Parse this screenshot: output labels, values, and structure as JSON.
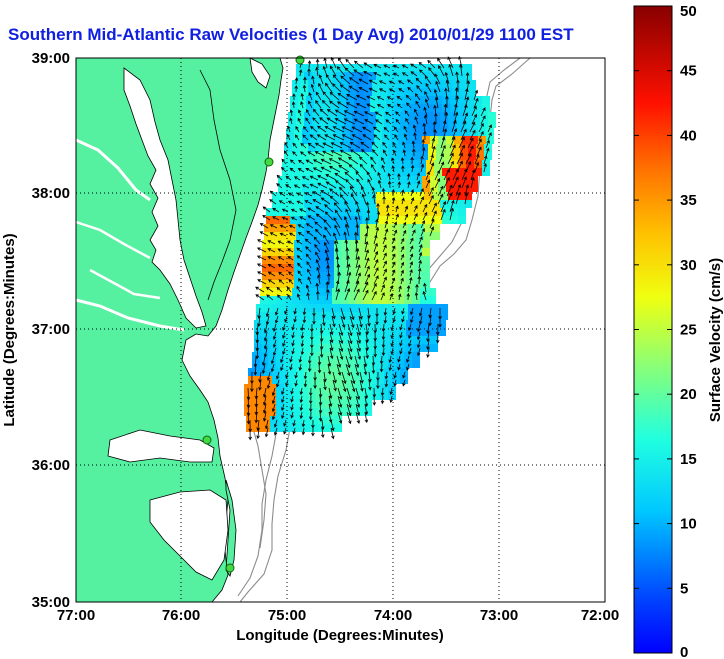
{
  "title": "Southern Mid-Atlantic Raw Velocities (1 Day Avg) 2010/01/29 1100 EST",
  "axes": {
    "xlabel": "Longitude (Degrees:Minutes)",
    "ylabel": "Latitude (Degrees:Minutes)",
    "x_ticks": [
      "77:00",
      "76:00",
      "75:00",
      "74:00",
      "73:00",
      "72:00"
    ],
    "y_ticks": [
      "39:00",
      "38:00",
      "37:00",
      "36:00",
      "35:00"
    ],
    "xlim": [
      -77,
      -72
    ],
    "ylim": [
      35,
      39
    ],
    "grid": "dotted"
  },
  "colorbar": {
    "label": "Surface Velocity (cm/s)",
    "ticks": [
      "50",
      "45",
      "40",
      "35",
      "30",
      "25",
      "20",
      "15",
      "10",
      "5",
      "0"
    ],
    "range": [
      0,
      50
    ],
    "colormap": "jet"
  },
  "colors": {
    "land": "#55f0a0",
    "bathymetry": "#8c8c8c",
    "station": "#44d844",
    "title": "#1020e0"
  },
  "stations_icon": "green-circle-icon"
}
